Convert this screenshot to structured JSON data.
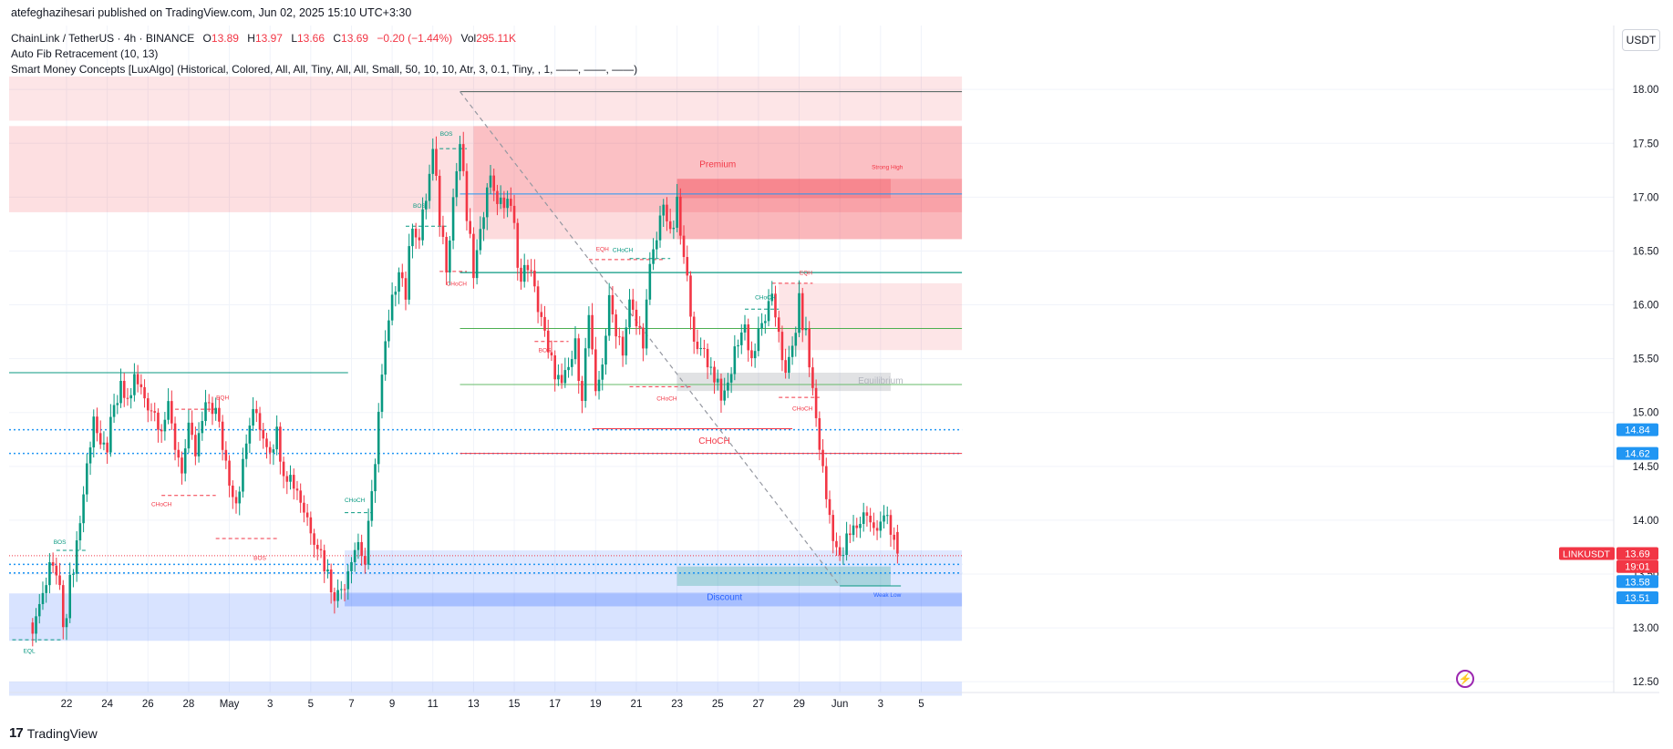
{
  "header": {
    "publish_line": "atefeghazihesari published on TradingView.com, Jun 02, 2025 15:10 UTC+3:30",
    "symbol": "ChainLink / TetherUS · 4h · BINANCE",
    "o_label": "O",
    "o_value": "13.89",
    "h_label": "H",
    "h_value": "13.97",
    "l_label": "L",
    "l_value": "13.66",
    "c_label": "C",
    "c_value": "13.69",
    "change": "−0.20 (−1.44%)",
    "vol_label": "Vol",
    "vol_value": "295.11K",
    "indicator1": "Auto Fib Retracement (10, 13)",
    "indicator2": "Smart Money Concepts [LuxAlgo] (Historical, Colored, All, All, Tiny, All, All, Small, 50, 10, 10, Atr, 3, 0.1, Tiny, , 1, ——, ——, ——)"
  },
  "currency": "USDT",
  "brand": "TradingView",
  "colors": {
    "bull": "#089981",
    "bear": "#f23645",
    "blue": "#2962ff",
    "grid": "#f0f3fa"
  },
  "chart_data": {
    "type": "candlestick",
    "ylim": [
      12.4,
      18.12
    ],
    "y_ticks": [
      "18.00",
      "17.50",
      "17.00",
      "16.50",
      "16.00",
      "15.50",
      "15.00",
      "14.50",
      "14.00",
      "13.50",
      "13.00",
      "12.50"
    ],
    "x_ticks": [
      {
        "label": "22",
        "bar": 0
      },
      {
        "label": "24",
        "bar": 12
      },
      {
        "label": "26",
        "bar": 24
      },
      {
        "label": "28",
        "bar": 36
      },
      {
        "label": "May",
        "bar": 48
      },
      {
        "label": "3",
        "bar": 60
      },
      {
        "label": "5",
        "bar": 72
      },
      {
        "label": "7",
        "bar": 84
      },
      {
        "label": "9",
        "bar": 96
      },
      {
        "label": "11",
        "bar": 108
      },
      {
        "label": "13",
        "bar": 120
      },
      {
        "label": "15",
        "bar": 132
      },
      {
        "label": "17",
        "bar": 144
      },
      {
        "label": "19",
        "bar": 156
      },
      {
        "label": "21",
        "bar": 168
      },
      {
        "label": "23",
        "bar": 180
      },
      {
        "label": "25",
        "bar": 192
      },
      {
        "label": "27",
        "bar": 204
      },
      {
        "label": "29",
        "bar": 216
      },
      {
        "label": "Jun",
        "bar": 228
      },
      {
        "label": "3",
        "bar": 240
      },
      {
        "label": "5",
        "bar": 252
      }
    ],
    "close_points": [
      [
        -10,
        13.05
      ],
      [
        -7,
        13.25
      ],
      [
        -5,
        13.6
      ],
      [
        -3,
        13.5
      ],
      [
        -1,
        13.1
      ],
      [
        0,
        13.2
      ],
      [
        2,
        13.6
      ],
      [
        4,
        14.0
      ],
      [
        6,
        14.5
      ],
      [
        8,
        15.0
      ],
      [
        10,
        14.6
      ],
      [
        12,
        14.7
      ],
      [
        14,
        15.0
      ],
      [
        16,
        15.2
      ],
      [
        18,
        15.1
      ],
      [
        20,
        15.3
      ],
      [
        22,
        15.2
      ],
      [
        24,
        15.1
      ],
      [
        26,
        15.0
      ],
      [
        28,
        14.9
      ],
      [
        30,
        15.0
      ],
      [
        32,
        14.7
      ],
      [
        34,
        14.5
      ],
      [
        36,
        14.8
      ],
      [
        38,
        14.6
      ],
      [
        40,
        14.9
      ],
      [
        42,
        15.1
      ],
      [
        44,
        15.0
      ],
      [
        46,
        14.7
      ],
      [
        48,
        14.4
      ],
      [
        50,
        14.2
      ],
      [
        52,
        14.5
      ],
      [
        54,
        14.9
      ],
      [
        56,
        15.0
      ],
      [
        58,
        14.8
      ],
      [
        60,
        14.7
      ],
      [
        62,
        14.8
      ],
      [
        64,
        14.5
      ],
      [
        66,
        14.4
      ],
      [
        68,
        14.3
      ],
      [
        70,
        14.1
      ],
      [
        72,
        13.95
      ],
      [
        74,
        13.8
      ],
      [
        76,
        13.6
      ],
      [
        78,
        13.4
      ],
      [
        80,
        13.3
      ],
      [
        82,
        13.45
      ],
      [
        84,
        13.7
      ],
      [
        86,
        13.8
      ],
      [
        88,
        13.6
      ],
      [
        90,
        14.2
      ],
      [
        92,
        15.0
      ],
      [
        94,
        15.6
      ],
      [
        96,
        16.0
      ],
      [
        98,
        16.4
      ],
      [
        100,
        16.1
      ],
      [
        102,
        16.8
      ],
      [
        104,
        16.6
      ],
      [
        106,
        17.0
      ],
      [
        108,
        17.4
      ],
      [
        110,
        16.8
      ],
      [
        112,
        16.4
      ],
      [
        114,
        17.0
      ],
      [
        116,
        17.5
      ],
      [
        118,
        16.8
      ],
      [
        120,
        16.3
      ],
      [
        122,
        16.6
      ],
      [
        124,
        17.2
      ],
      [
        126,
        17.1
      ],
      [
        128,
        16.9
      ],
      [
        130,
        17.0
      ],
      [
        132,
        16.7
      ],
      [
        134,
        16.2
      ],
      [
        136,
        16.4
      ],
      [
        138,
        16.1
      ],
      [
        140,
        15.9
      ],
      [
        142,
        15.5
      ],
      [
        144,
        15.4
      ],
      [
        146,
        15.2
      ],
      [
        148,
        15.4
      ],
      [
        150,
        15.6
      ],
      [
        152,
        15.2
      ],
      [
        154,
        15.9
      ],
      [
        156,
        15.1
      ],
      [
        158,
        15.5
      ],
      [
        160,
        16.0
      ],
      [
        162,
        15.8
      ],
      [
        164,
        15.6
      ],
      [
        166,
        16.0
      ],
      [
        168,
        15.8
      ],
      [
        170,
        15.7
      ],
      [
        172,
        16.3
      ],
      [
        174,
        16.6
      ],
      [
        176,
        17.0
      ],
      [
        178,
        16.6
      ],
      [
        180,
        16.9
      ],
      [
        182,
        16.4
      ],
      [
        184,
        16.0
      ],
      [
        186,
        15.5
      ],
      [
        188,
        15.6
      ],
      [
        190,
        15.4
      ],
      [
        192,
        15.3
      ],
      [
        194,
        15.1
      ],
      [
        196,
        15.4
      ],
      [
        198,
        15.7
      ],
      [
        200,
        15.8
      ],
      [
        202,
        15.5
      ],
      [
        204,
        15.7
      ],
      [
        206,
        15.9
      ],
      [
        208,
        16.0
      ],
      [
        210,
        15.8
      ],
      [
        212,
        15.3
      ],
      [
        214,
        15.6
      ],
      [
        216,
        16.0
      ],
      [
        218,
        15.7
      ],
      [
        220,
        15.2
      ],
      [
        222,
        14.7
      ],
      [
        224,
        14.2
      ],
      [
        226,
        13.9
      ],
      [
        228,
        13.6
      ],
      [
        230,
        13.8
      ],
      [
        232,
        13.9
      ],
      [
        234,
        14.0
      ],
      [
        236,
        14.1
      ],
      [
        238,
        13.9
      ],
      [
        240,
        13.95
      ],
      [
        242,
        14.05
      ],
      [
        244,
        13.85
      ],
      [
        245,
        13.69
      ]
    ],
    "labels": [
      {
        "text": "CHoCH",
        "bar": -27,
        "price": 15.55,
        "kind": "bull",
        "size": "big"
      },
      {
        "text": "CHoCH",
        "bar": 191,
        "price": 14.71,
        "kind": "bear",
        "size": "big"
      },
      {
        "text": "Premium",
        "bar": 192,
        "price": 17.28,
        "kind": "bear",
        "size": "mid"
      },
      {
        "text": "Discount",
        "bar": 194,
        "price": 13.26,
        "kind": "blue",
        "size": "mid"
      },
      {
        "text": "Equilibrium",
        "bar": 240,
        "price": 15.27,
        "kind": "gray",
        "size": "mid"
      },
      {
        "text": "Strong High",
        "bar": 242,
        "price": 17.26,
        "kind": "bear",
        "size": "small"
      },
      {
        "text": "Weak Low",
        "bar": 242,
        "price": 13.29,
        "kind": "blue",
        "size": "small"
      },
      {
        "text": "EQL",
        "bar": -11,
        "price": 12.77,
        "kind": "bull",
        "size": "small"
      },
      {
        "text": "EQH",
        "bar": 46,
        "price": 15.12,
        "kind": "bear",
        "size": "small"
      },
      {
        "text": "EQH",
        "bar": 158,
        "price": 16.5,
        "kind": "bear",
        "size": "small"
      },
      {
        "text": "EQH",
        "bar": 218,
        "price": 16.28,
        "kind": "bear",
        "size": "small"
      },
      {
        "text": "BOS",
        "bar": -2,
        "price": 13.78,
        "kind": "bull",
        "size": "small"
      },
      {
        "text": "BOS",
        "bar": 104,
        "price": 16.9,
        "kind": "bull",
        "size": "small"
      },
      {
        "text": "BOS",
        "bar": 112,
        "price": 17.57,
        "kind": "bull",
        "size": "small"
      },
      {
        "text": "BOS",
        "bar": 57,
        "price": 13.63,
        "kind": "bear",
        "size": "small"
      },
      {
        "text": "BOS",
        "bar": 141,
        "price": 15.56,
        "kind": "bear",
        "size": "small"
      },
      {
        "text": "CHoCH",
        "bar": 28,
        "price": 14.13,
        "kind": "bear",
        "size": "small"
      },
      {
        "text": "CHoCH",
        "bar": 85,
        "price": 14.17,
        "kind": "bull",
        "size": "small"
      },
      {
        "text": "CHoCH",
        "bar": 115,
        "price": 16.18,
        "kind": "bear",
        "size": "small"
      },
      {
        "text": "CHoCH",
        "bar": 164,
        "price": 16.49,
        "kind": "bull",
        "size": "small"
      },
      {
        "text": "CHoCH",
        "bar": 177,
        "price": 15.11,
        "kind": "bear",
        "size": "small"
      },
      {
        "text": "CHoCH",
        "bar": 206,
        "price": 16.05,
        "kind": "bull",
        "size": "small"
      },
      {
        "text": "CHoCH",
        "bar": 217,
        "price": 15.02,
        "kind": "bear",
        "size": "small"
      }
    ],
    "price_tags": [
      {
        "text": "14.84",
        "price": 14.84,
        "bg": "#2196f3"
      },
      {
        "text": "14.62",
        "price": 14.62,
        "bg": "#2196f3"
      },
      {
        "text": "13.69",
        "price": 13.69,
        "bg": "#f23645"
      },
      {
        "text": "19:01",
        "price": 13.57,
        "bg": "#f23645"
      },
      {
        "text": "13.58",
        "price": 13.43,
        "bg": "#2196f3"
      },
      {
        "text": "13.51",
        "price": 13.28,
        "bg": "#2196f3"
      }
    ],
    "symbol_tag": "LINKUSDT"
  }
}
